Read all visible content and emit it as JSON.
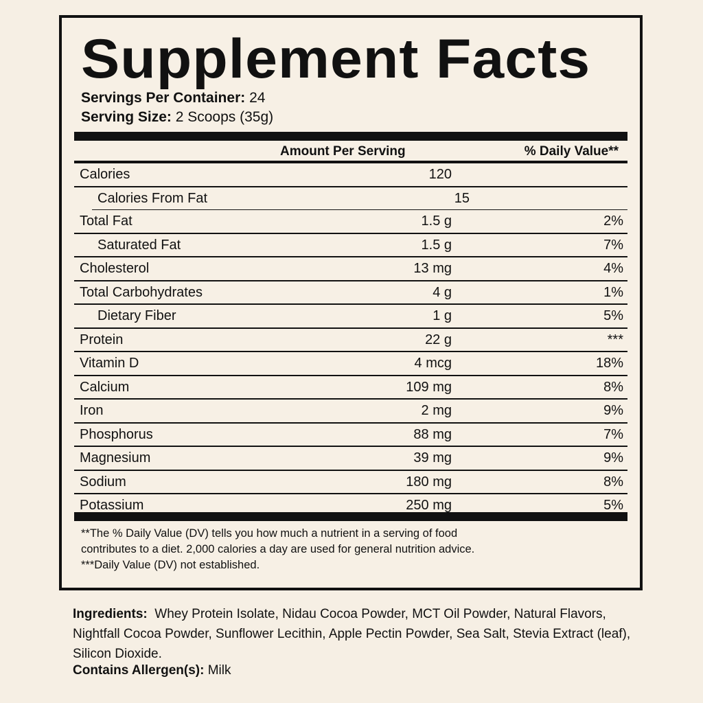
{
  "title": "Supplement Facts",
  "servings_per_container": {
    "label": "Servings Per Container:",
    "value": "24"
  },
  "serving_size": {
    "label": "Serving Size:",
    "value": "2 Scoops (35g)"
  },
  "header": {
    "amount": "Amount Per Serving",
    "dv": "% Daily Value**"
  },
  "rows": [
    {
      "label": "Calories",
      "amount": "120",
      "dv": ""
    },
    {
      "label": "Calories From Fat",
      "amount": "15",
      "dv": ""
    },
    {
      "label": "Total Fat",
      "amount": "1.5 g",
      "dv": "2%"
    },
    {
      "label": "Saturated Fat",
      "amount": "1.5 g",
      "dv": "7%"
    },
    {
      "label": "Cholesterol",
      "amount": "13 mg",
      "dv": "4%"
    },
    {
      "label": "Total Carbohydrates",
      "amount": "4 g",
      "dv": "1%"
    },
    {
      "label": "Dietary Fiber",
      "amount": "1 g",
      "dv": "5%"
    },
    {
      "label": "Protein",
      "amount": "22 g",
      "dv": "***"
    },
    {
      "label": "Vitamin D",
      "amount": "4 mcg",
      "dv": "18%"
    },
    {
      "label": "Calcium",
      "amount": "109 mg",
      "dv": "8%"
    },
    {
      "label": "Iron",
      "amount": "2 mg",
      "dv": "9%"
    },
    {
      "label": "Phosphorus",
      "amount": "88 mg",
      "dv": "7%"
    },
    {
      "label": "Magnesium",
      "amount": "39 mg",
      "dv": "9%"
    },
    {
      "label": "Sodium",
      "amount": "180 mg",
      "dv": "8%"
    },
    {
      "label": "Potassium",
      "amount": "250 mg",
      "dv": "5%"
    }
  ],
  "footnote1": "**The % Daily Value (DV) tells you how much a nutrient in a serving of food contributes to a diet. 2,000 calories a day are used for general nutrition advice.",
  "footnote2": "***Daily Value (DV) not established.",
  "ingredients": {
    "label": "Ingredients:",
    "text": "Whey Protein Isolate, Nidau Cocoa Powder, MCT Oil Powder, Natural Flavors, Nightfall Cocoa Powder, Sunflower Lecithin, Apple Pectin Powder, Sea Salt, Stevia Extract (leaf), Silicon Dioxide."
  },
  "allergens": {
    "label": "Contains Allergen(s):",
    "value": "Milk"
  }
}
